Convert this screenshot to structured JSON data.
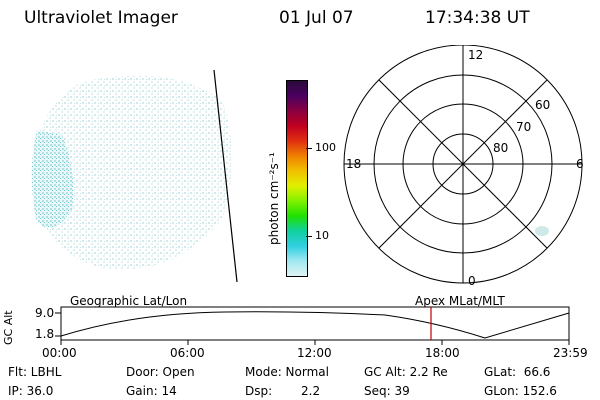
{
  "header": {
    "title": "Ultraviolet Imager",
    "date": "01 Jul 07",
    "time": "17:34:38 UT"
  },
  "colorbar": {
    "label": "photon cm⁻²s⁻¹",
    "ticks": [
      "100",
      "10"
    ],
    "colors": [
      "#2a0a3a",
      "#4a0060",
      "#8a0040",
      "#c00020",
      "#e03010",
      "#f08000",
      "#f0c000",
      "#e0f000",
      "#80f000",
      "#20e000",
      "#10d0a0",
      "#30d0e0",
      "#a0e8f0",
      "#e0f4f4"
    ]
  },
  "polar_plot": {
    "mlt_labels": [
      "12",
      "18",
      "6",
      "0"
    ],
    "lat_labels": [
      "60",
      "70",
      "80"
    ]
  },
  "timeline": {
    "left_label": "Geographic Lat/Lon",
    "right_label": "Apex MLat/MLT",
    "y_axis_label": "GC Alt",
    "y_ticks": [
      "9.0",
      "1.8"
    ],
    "x_ticks": [
      "00:00",
      "06:00",
      "12:00",
      "18:00",
      "23:59"
    ],
    "marker_time": "17:34:38",
    "marker_color": "#c00000"
  },
  "info": {
    "flt": "Flt: LBHL",
    "ip": "IP: 36.0",
    "door": "Door: Open",
    "gain": "Gain: 14",
    "mode": "Mode: Normal",
    "dsp_label": "Dsp:",
    "dsp_value": "2.2",
    "gc_alt": "GC Alt: 2.2 Re",
    "seq": "Seq: 39",
    "glat": "GLat:  66.6",
    "glon": "GLon: 152.6"
  }
}
